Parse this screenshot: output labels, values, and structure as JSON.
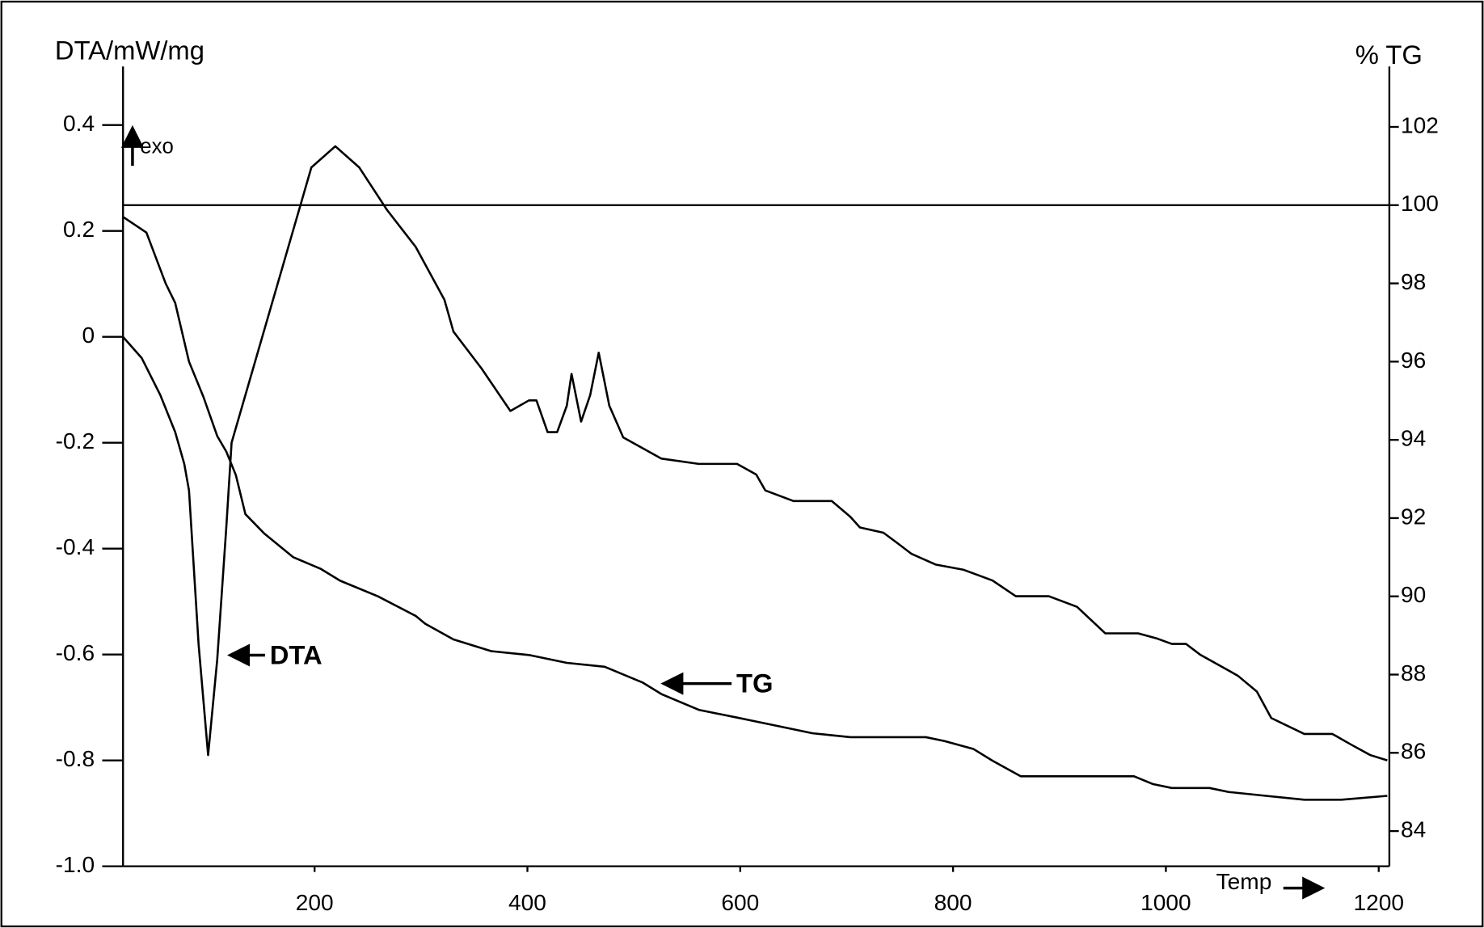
{
  "chart_data": {
    "type": "line",
    "y_axis_label": "DTA/mW/mg",
    "y2_axis_label": "% TG",
    "annotations": [
      "exo",
      "DTA",
      "TG",
      "Temp"
    ],
    "xlim": [
      20,
      1210
    ],
    "xticks": [
      200,
      400,
      600,
      800,
      1000,
      1200
    ],
    "ylim": [
      -1.0,
      0.5
    ],
    "yticks": [
      {
        "value": -1.0,
        "label": "-1.0"
      },
      -0.8,
      -0.6,
      -0.4,
      -0.2,
      0,
      0.2,
      0.4
    ],
    "y2lim": [
      83.1,
      103.4
    ],
    "y2ticks": [
      84,
      86,
      88,
      90,
      92,
      94,
      96,
      98,
      100,
      102
    ],
    "reference_line": {
      "value": 100,
      "axis": "y2"
    },
    "grid": false,
    "series": [
      {
        "name": "DTA",
        "color": "#000000",
        "axis": "y",
        "x": [
          20,
          37.5,
          55,
          69,
          77.5,
          82,
          91,
          100,
          108.5,
          117,
          122,
          171,
          197,
          219.5,
          242,
          268,
          295,
          322,
          330.5,
          357,
          384,
          401.5,
          408.5,
          419,
          428,
          437,
          441.5,
          450.5,
          459,
          467,
          477,
          490,
          526,
          561,
          597,
          615,
          623.5,
          650,
          686,
          703.5,
          712.5,
          734.5,
          748,
          761,
          783.5,
          810,
          837,
          859,
          890,
          916.5,
          943,
          974,
          992,
          1005.5,
          1019,
          1032,
          1067.5,
          1085.5,
          1099,
          1130,
          1156.5,
          1174,
          1192,
          1208
        ],
        "values": [
          0,
          -0.04,
          -0.11,
          -0.18,
          -0.24,
          -0.29,
          -0.58,
          -0.79,
          -0.61,
          -0.36,
          -0.2,
          0.14,
          0.32,
          0.36,
          0.32,
          0.24,
          0.17,
          0.07,
          0.01,
          -0.06,
          -0.14,
          -0.12,
          -0.12,
          -0.18,
          -0.18,
          -0.13,
          -0.07,
          -0.16,
          -0.11,
          -0.03,
          -0.13,
          -0.19,
          -0.23,
          -0.24,
          -0.24,
          -0.26,
          -0.29,
          -0.31,
          -0.31,
          -0.34,
          -0.36,
          -0.37,
          -0.39,
          -0.41,
          -0.43,
          -0.44,
          -0.46,
          -0.49,
          -0.49,
          -0.51,
          -0.56,
          -0.56,
          -0.57,
          -0.58,
          -0.58,
          -0.6,
          -0.64,
          -0.67,
          -0.72,
          -0.75,
          -0.75,
          -0.77,
          -0.79,
          -0.8
        ]
      },
      {
        "name": "TG",
        "color": "#000000",
        "axis": "y2",
        "x": [
          20,
          42,
          60,
          69,
          82,
          95.5,
          108.5,
          117,
          126,
          135,
          153,
          180,
          206,
          224,
          259.5,
          295,
          304,
          330.5,
          366,
          401.5,
          437,
          472.5,
          508,
          526,
          561,
          597,
          632.5,
          668,
          703.5,
          739,
          774.5,
          792,
          819,
          837,
          863.5,
          881,
          925.5,
          952,
          970,
          988,
          1005.5,
          1041,
          1059,
          1094,
          1130,
          1165,
          1208
        ],
        "values": [
          99.7,
          99.3,
          98.0,
          97.5,
          96.0,
          95.1,
          94.1,
          93.7,
          93.1,
          92.1,
          91.6,
          91.0,
          90.7,
          90.4,
          90.0,
          89.5,
          89.3,
          88.9,
          88.6,
          88.5,
          88.3,
          88.2,
          87.8,
          87.5,
          87.1,
          86.9,
          86.7,
          86.5,
          86.4,
          86.4,
          86.4,
          86.3,
          86.1,
          85.8,
          85.4,
          85.4,
          85.4,
          85.4,
          85.4,
          85.2,
          85.1,
          85.1,
          85.0,
          84.9,
          84.8,
          84.8,
          84.9
        ]
      }
    ]
  }
}
